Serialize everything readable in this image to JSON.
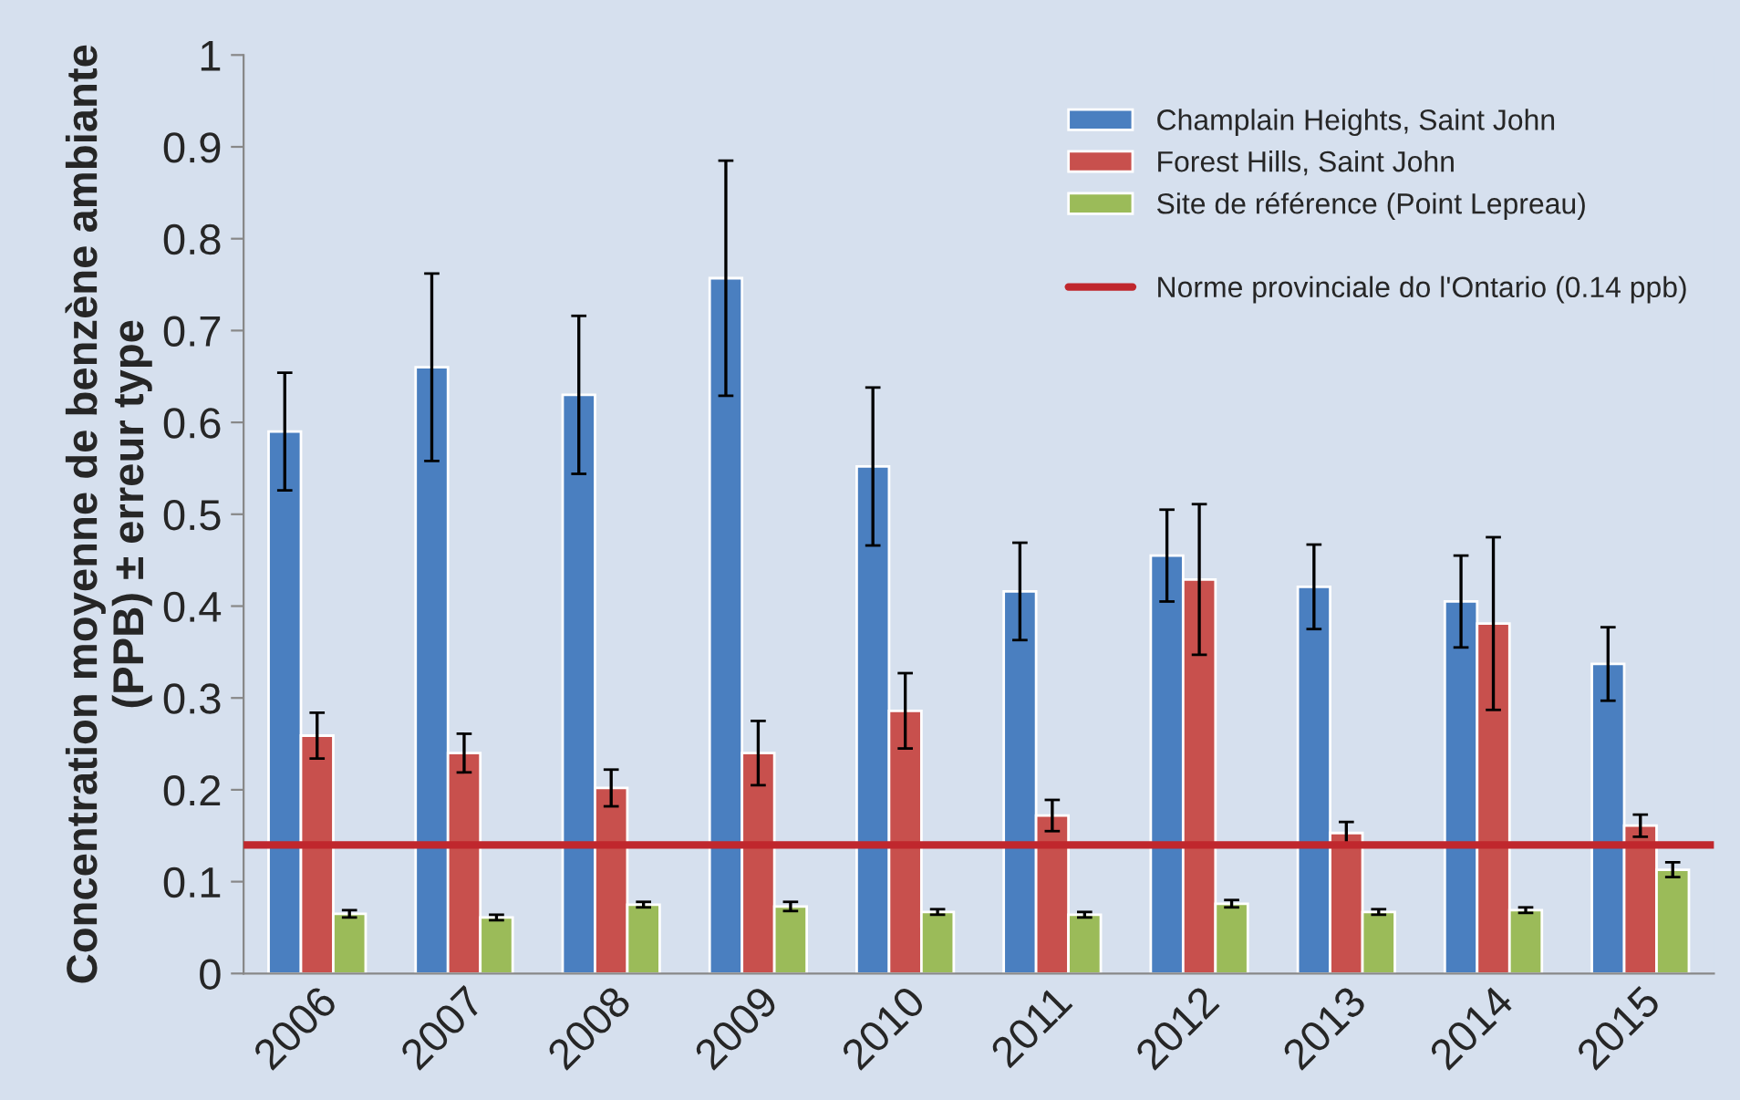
{
  "chart_data": {
    "type": "bar",
    "ylabel": "Concentration moyenne de benzène ambiante\n(PPB) ± erreur type",
    "categories": [
      "2006",
      "2007",
      "2008",
      "2009",
      "2010",
      "2011",
      "2012",
      "2013",
      "2014",
      "2015"
    ],
    "series": [
      {
        "name": "Champlain Heights, Saint John",
        "color": "#4a7fc0",
        "values": [
          0.59,
          0.66,
          0.63,
          0.757,
          0.552,
          0.416,
          0.455,
          0.421,
          0.405,
          0.337
        ],
        "errors": [
          0.064,
          0.102,
          0.086,
          0.128,
          0.086,
          0.053,
          0.05,
          0.046,
          0.05,
          0.04
        ]
      },
      {
        "name": "Forest Hills, Saint John",
        "color": "#c8504d",
        "values": [
          0.259,
          0.24,
          0.202,
          0.24,
          0.286,
          0.172,
          0.429,
          0.153,
          0.381,
          0.161
        ],
        "errors": [
          0.025,
          0.021,
          0.02,
          0.035,
          0.041,
          0.017,
          0.082,
          0.012,
          0.094,
          0.012
        ]
      },
      {
        "name": "Site de référence (Point Lepreau)",
        "color": "#9bbb59",
        "values": [
          0.065,
          0.061,
          0.075,
          0.073,
          0.067,
          0.064,
          0.076,
          0.067,
          0.069,
          0.113
        ],
        "errors": [
          0.004,
          0.003,
          0.003,
          0.005,
          0.003,
          0.003,
          0.004,
          0.003,
          0.003,
          0.008
        ]
      }
    ],
    "ref_lines": [
      {
        "axis": "y",
        "value": 0.14,
        "label": "Norme provinciale do l'Ontario (0.14 ppb)",
        "color": "#c0272d"
      }
    ],
    "ylim": [
      0,
      1
    ],
    "yticks": [
      0,
      0.1,
      0.2,
      0.3,
      0.4,
      0.5,
      0.6,
      0.7,
      0.8,
      0.9,
      1
    ],
    "grid": false,
    "legend": "top right"
  }
}
